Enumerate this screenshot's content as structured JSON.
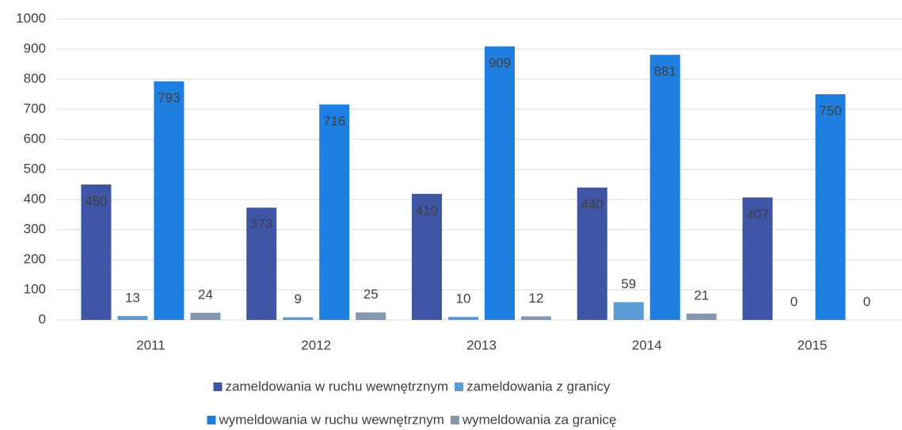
{
  "chart_data": {
    "type": "bar",
    "categories": [
      "2011",
      "2012",
      "2013",
      "2014",
      "2015"
    ],
    "series": [
      {
        "name": "zameldowania w ruchu wewnętrznym",
        "color": "#3f56a6",
        "values": [
          450,
          373,
          419,
          440,
          407
        ]
      },
      {
        "name": "zameldowania z granicy",
        "color": "#5b9bd5",
        "values": [
          13,
          9,
          10,
          59,
          0
        ]
      },
      {
        "name": "wymeldowania w ruchu wewnętrznym",
        "color": "#1f7fe0",
        "values": [
          793,
          716,
          909,
          881,
          750
        ]
      },
      {
        "name": "wymeldowania za granicę",
        "color": "#8496b0",
        "values": [
          24,
          25,
          12,
          21,
          0
        ]
      }
    ],
    "ylim": [
      0,
      1000
    ],
    "yticks": [
      0,
      100,
      200,
      300,
      400,
      500,
      600,
      700,
      800,
      900,
      1000
    ],
    "grid": true,
    "legend": "bottom"
  }
}
